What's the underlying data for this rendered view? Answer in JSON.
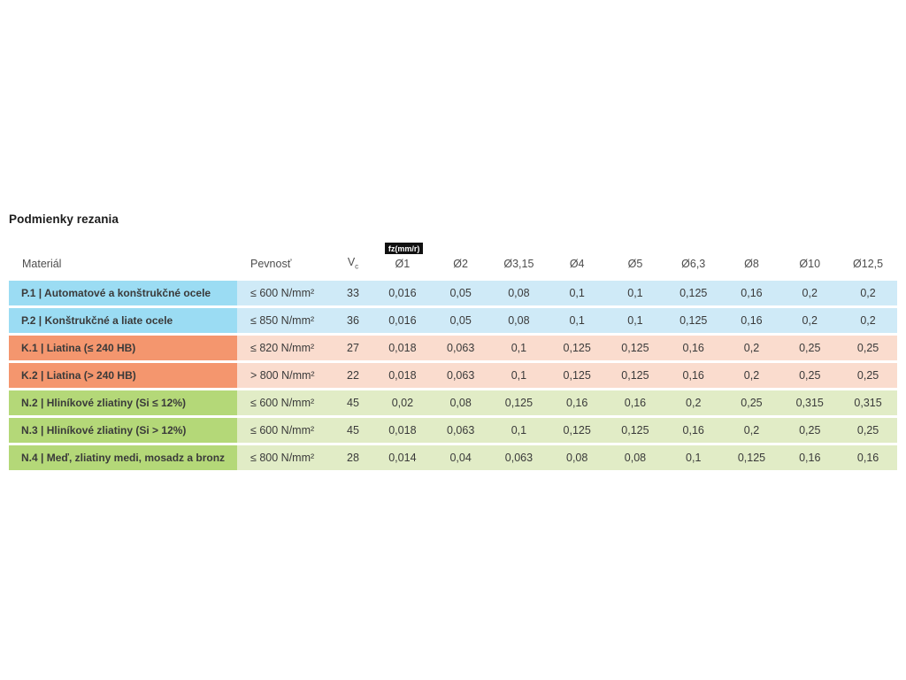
{
  "page": {
    "title": "Podmienky rezania"
  },
  "table": {
    "badge": "fz(mm/r)",
    "headers": {
      "material": "Materiál",
      "pevnost": "Pevnosť",
      "vc_base": "V",
      "vc_sub": "c",
      "diameters": [
        "Ø1",
        "Ø2",
        "Ø3,15",
        "Ø4",
        "Ø5",
        "Ø6,3",
        "Ø8",
        "Ø10",
        "Ø12,5"
      ]
    },
    "colors": {
      "steel_label": "#9bdcf3",
      "steel_row": "#cfeaf7",
      "cast_iron_label": "#f4966e",
      "cast_iron_row": "#fadcce",
      "nonferrous_label": "#b4d878",
      "nonferrous_row": "#e1ecc6",
      "badge_bg": "#111111",
      "badge_text": "#ffffff"
    },
    "rows": [
      {
        "group": "steel",
        "material": "P.1 | Automatové a konštrukčné ocele",
        "pevnost": "≤ 600 N/mm²",
        "vc": "33",
        "values": [
          "0,016",
          "0,05",
          "0,08",
          "0,1",
          "0,1",
          "0,125",
          "0,16",
          "0,2",
          "0,2"
        ]
      },
      {
        "group": "steel",
        "material": "P.2 | Konštrukčné a liate ocele",
        "pevnost": "≤ 850 N/mm²",
        "vc": "36",
        "values": [
          "0,016",
          "0,05",
          "0,08",
          "0,1",
          "0,1",
          "0,125",
          "0,16",
          "0,2",
          "0,2"
        ]
      },
      {
        "group": "cast",
        "material": "K.1 | Liatina (≤ 240 HB)",
        "pevnost": "≤ 820 N/mm²",
        "vc": "27",
        "values": [
          "0,018",
          "0,063",
          "0,1",
          "0,125",
          "0,125",
          "0,16",
          "0,2",
          "0,25",
          "0,25"
        ]
      },
      {
        "group": "cast",
        "material": "K.2 | Liatina (> 240 HB)",
        "pevnost": "> 800 N/mm²",
        "vc": "22",
        "values": [
          "0,018",
          "0,063",
          "0,1",
          "0,125",
          "0,125",
          "0,16",
          "0,2",
          "0,25",
          "0,25"
        ]
      },
      {
        "group": "non",
        "material": "N.2 | Hliníkové zliatiny (Si ≤ 12%)",
        "pevnost": "≤ 600 N/mm²",
        "vc": "45",
        "values": [
          "0,02",
          "0,08",
          "0,125",
          "0,16",
          "0,16",
          "0,2",
          "0,25",
          "0,315",
          "0,315"
        ]
      },
      {
        "group": "non",
        "material": "N.3 | Hliníkové zliatiny (Si > 12%)",
        "pevnost": "≤ 600 N/mm²",
        "vc": "45",
        "values": [
          "0,018",
          "0,063",
          "0,1",
          "0,125",
          "0,125",
          "0,16",
          "0,2",
          "0,25",
          "0,25"
        ]
      },
      {
        "group": "non",
        "material": "N.4 | Meď, zliatiny medi, mosadz a bronz",
        "pevnost": "≤ 800 N/mm²",
        "vc": "28",
        "values": [
          "0,014",
          "0,04",
          "0,063",
          "0,08",
          "0,08",
          "0,1",
          "0,125",
          "0,16",
          "0,16"
        ]
      }
    ]
  }
}
